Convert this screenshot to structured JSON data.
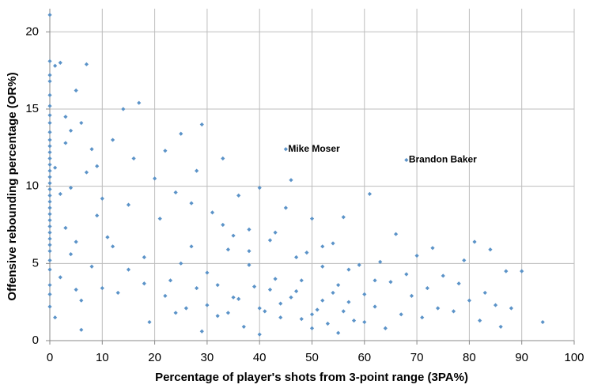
{
  "chart_data": {
    "type": "scatter",
    "x_label": "Percentage of player's shots from 3-point range (3PA%)",
    "y_label": "Offensive rebounding percentage (OR%)",
    "color": "#5b93c8",
    "grid": true,
    "xlim": [
      0,
      100
    ],
    "ylim": [
      0,
      21.5
    ],
    "xticks": [
      0,
      10,
      20,
      30,
      40,
      50,
      60,
      70,
      80,
      90,
      100
    ],
    "yticks": [
      0,
      5,
      10,
      15,
      20
    ],
    "x": [
      0,
      0,
      0,
      0,
      0,
      0,
      0,
      0,
      0,
      0,
      0,
      0,
      0,
      0,
      0,
      0,
      0,
      0,
      0,
      0,
      0,
      0,
      0,
      0,
      0,
      0,
      0,
      0,
      0,
      0,
      0,
      0,
      0,
      1,
      2,
      3,
      4,
      5,
      6,
      7,
      1,
      2,
      3,
      4,
      5,
      6,
      7,
      8,
      9,
      1,
      2,
      3,
      4,
      5,
      6,
      8,
      9,
      10,
      11,
      12,
      13,
      14,
      15,
      16,
      17,
      18,
      19,
      20,
      21,
      22,
      23,
      24,
      25,
      26,
      27,
      28,
      29,
      30,
      31,
      32,
      33,
      34,
      35,
      36,
      37,
      38,
      39,
      40,
      41,
      42,
      43,
      44,
      45,
      46,
      47,
      48,
      49,
      50,
      51,
      52,
      53,
      54,
      55,
      56,
      57,
      58,
      59,
      60,
      61,
      62,
      63,
      64,
      65,
      66,
      67,
      68,
      69,
      70,
      71,
      72,
      73,
      74,
      75,
      77,
      78,
      79,
      80,
      81,
      82,
      83,
      84,
      85,
      86,
      87,
      88,
      90,
      94,
      30,
      32,
      34,
      36,
      38,
      40,
      42,
      44,
      46,
      48,
      50,
      52,
      54,
      56,
      35,
      28,
      25,
      22,
      18,
      15,
      12,
      10,
      27,
      33,
      38,
      43,
      47,
      52,
      57,
      62,
      24,
      29,
      40,
      50,
      55,
      60
    ],
    "values": [
      21.1,
      18.1,
      17.2,
      16.8,
      15.9,
      15.2,
      14.6,
      14.1,
      13.5,
      13.0,
      12.6,
      12.2,
      11.8,
      11.4,
      11.0,
      10.6,
      10.2,
      9.8,
      9.4,
      9.0,
      8.6,
      8.2,
      7.8,
      7.4,
      7.0,
      6.6,
      6.2,
      5.8,
      5.2,
      4.6,
      3.6,
      3.0,
      2.2,
      17.8,
      18.0,
      14.5,
      13.6,
      16.2,
      14.1,
      17.9,
      11.2,
      9.5,
      7.3,
      5.6,
      3.3,
      0.7,
      10.9,
      12.4,
      8.1,
      1.5,
      4.1,
      12.8,
      9.9,
      6.4,
      2.6,
      4.8,
      11.3,
      9.2,
      6.7,
      13.0,
      3.1,
      15.0,
      8.8,
      11.8,
      15.4,
      5.4,
      1.2,
      10.5,
      7.9,
      12.3,
      3.9,
      9.6,
      13.4,
      2.1,
      6.1,
      11.0,
      14.0,
      4.4,
      8.3,
      1.6,
      11.8,
      5.9,
      2.8,
      9.4,
      0.9,
      7.2,
      3.5,
      9.9,
      1.9,
      6.5,
      4.0,
      2.4,
      8.6,
      10.4,
      3.2,
      1.4,
      5.7,
      7.9,
      2.0,
      4.8,
      1.1,
      6.3,
      3.6,
      8.0,
      2.5,
      1.3,
      4.9,
      3.0,
      9.5,
      2.2,
      5.1,
      0.8,
      3.8,
      6.9,
      1.7,
      4.3,
      2.9,
      5.5,
      1.5,
      3.4,
      6.0,
      2.1,
      4.2,
      1.9,
      3.7,
      5.2,
      2.6,
      6.4,
      1.3,
      3.1,
      5.9,
      2.3,
      0.9,
      4.5,
      2.1,
      4.5,
      1.2,
      2.3,
      3.6,
      1.8,
      2.7,
      4.9,
      2.1,
      3.3,
      1.5,
      2.8,
      3.9,
      1.7,
      2.6,
      3.1,
      1.9,
      6.8,
      3.4,
      5.0,
      2.9,
      3.7,
      4.6,
      6.1,
      3.4,
      8.9,
      7.5,
      5.8,
      7.0,
      5.4,
      6.1,
      4.6,
      3.9,
      1.8,
      0.6,
      0.4,
      0.8,
      0.5,
      1.2
    ],
    "annotations": [
      {
        "text": "Mike Moser",
        "x": 45,
        "y": 12.4
      },
      {
        "text": "Brandon Baker",
        "x": 68,
        "y": 11.7
      }
    ]
  }
}
